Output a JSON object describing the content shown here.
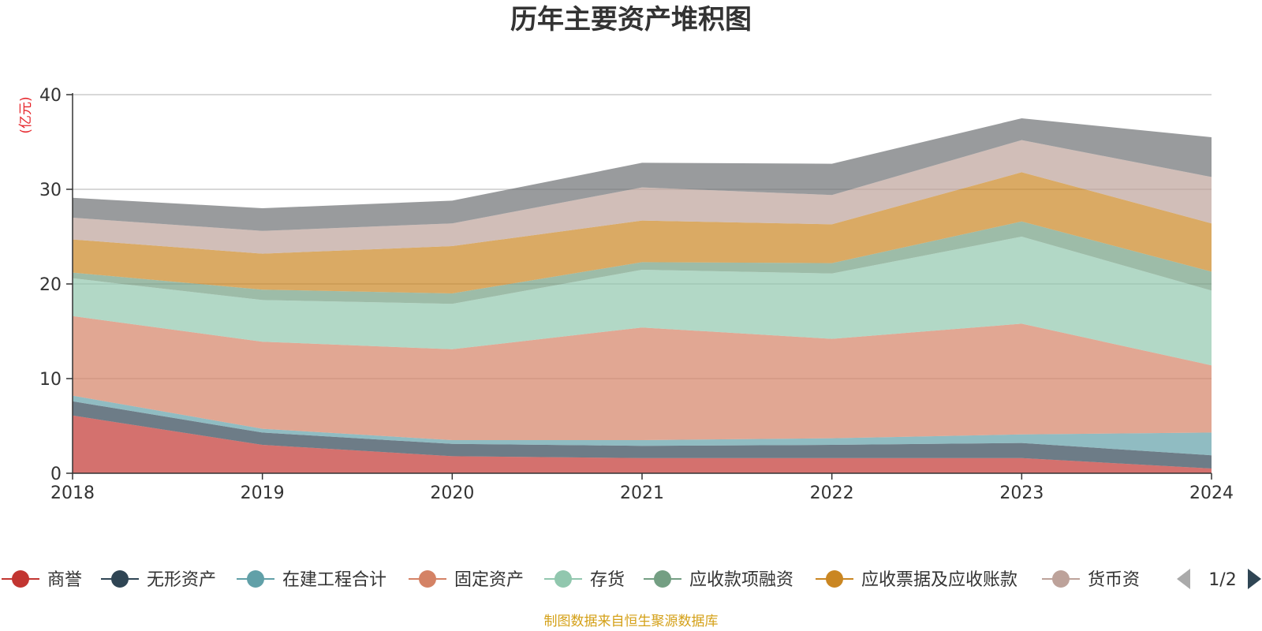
{
  "chart_data": {
    "type": "area",
    "stacked": true,
    "title": "历年主要资产堆积图",
    "ylabel": "(亿元)",
    "ylim": [
      0,
      40
    ],
    "yticks": [
      0,
      10,
      20,
      30,
      40
    ],
    "grid": true,
    "x": [
      "2018",
      "2019",
      "2020",
      "2021",
      "2022",
      "2023",
      "2024"
    ],
    "series": [
      {
        "name": "商誉",
        "color": "#c23531",
        "values": [
          6.1,
          3.0,
          1.8,
          1.6,
          1.6,
          1.6,
          0.5
        ]
      },
      {
        "name": "无形资产",
        "color": "#2f4554",
        "values": [
          1.5,
          1.3,
          1.3,
          1.3,
          1.4,
          1.6,
          1.4
        ]
      },
      {
        "name": "在建工程合计",
        "color": "#61a0a8",
        "values": [
          0.6,
          0.4,
          0.4,
          0.6,
          0.7,
          0.9,
          2.4
        ]
      },
      {
        "name": "固定资产",
        "color": "#d48265",
        "values": [
          8.4,
          9.2,
          9.6,
          11.9,
          10.5,
          11.7,
          7.1
        ]
      },
      {
        "name": "存货",
        "color": "#91c7ae",
        "values": [
          4.0,
          4.4,
          4.8,
          6.1,
          6.9,
          9.2,
          7.9
        ]
      },
      {
        "name": "应收款项融资",
        "color": "#749f83",
        "values": [
          0.6,
          1.1,
          1.1,
          0.8,
          1.1,
          1.6,
          2.0
        ]
      },
      {
        "name": "应收票据及应收账款",
        "color": "#ca8622",
        "values": [
          3.5,
          3.8,
          5.0,
          4.4,
          4.1,
          5.2,
          5.1
        ]
      },
      {
        "name": "货币资金",
        "color": "#bda29a",
        "values": [
          2.3,
          2.4,
          2.4,
          3.5,
          3.1,
          3.4,
          4.9
        ]
      },
      {
        "name": "",
        "color": "#6e7074",
        "values": [
          2.1,
          2.4,
          2.4,
          2.6,
          3.3,
          2.3,
          4.2
        ]
      }
    ],
    "legend": {
      "position": "bottom",
      "visible_items": [
        "商誉",
        "无形资产",
        "在建工程合计",
        "固定资产",
        "存货",
        "应收款项融资",
        "应收票据及应收账款",
        "货币资"
      ],
      "page": "1/2"
    }
  },
  "footer": {
    "source": "制图数据来自恒生聚源数据库"
  }
}
